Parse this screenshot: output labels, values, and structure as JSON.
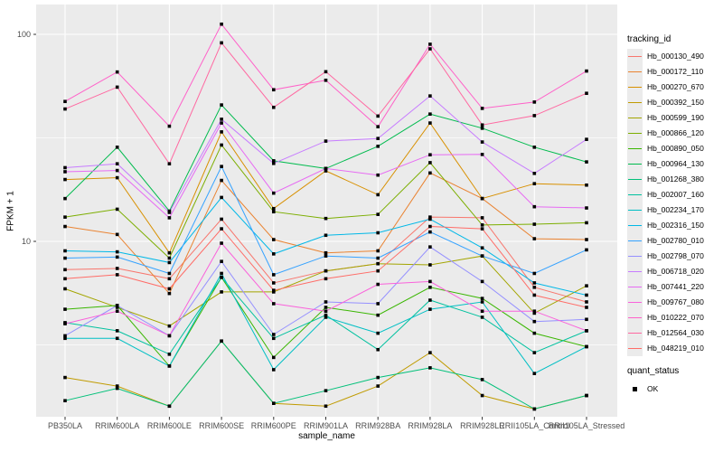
{
  "figure": {
    "panel_bg": "#ebebeb",
    "grid_color": "#ffffff",
    "tick_label_color": "#4d4d4d",
    "point_color": "#000000"
  },
  "axes": {
    "y_title": "FPKM + 1",
    "x_title": "sample_name"
  },
  "legend": {
    "tracking_title": "tracking_id",
    "quant_title": "quant_status",
    "quant_ok_label": "OK"
  },
  "chart_data": {
    "type": "line",
    "title": "",
    "xlabel": "sample_name",
    "ylabel": "FPKM + 1",
    "y_scale": "log10",
    "y_tick_values": [
      100,
      10
    ],
    "y_minor_values": [
      31.6,
      3.16
    ],
    "ylim": [
      1.3,
      140
    ],
    "grid": true,
    "legend_position": "right",
    "marker": "black-square",
    "quant_status_all": "OK",
    "x_categories": [
      "PB350LA",
      "RRIM600LA",
      "RRIM600LE",
      "RRIM600SE",
      "RRIM600PE",
      "RRIM901LA",
      "RRIM928BA",
      "RRIM928LA",
      "RRIM928LE",
      "RRII105LA_Control",
      "RRII105LA_Stressed"
    ],
    "series": [
      {
        "name": "Hb_000130_490",
        "color": "#F8766D",
        "values": [
          7.3,
          7.4,
          6.6,
          12.8,
          6.3,
          7.2,
          7.8,
          13.1,
          13.0,
          6.0,
          5.1
        ]
      },
      {
        "name": "Hb_000172_110",
        "color": "#EA8331",
        "values": [
          11.8,
          10.8,
          5.6,
          19.7,
          10.2,
          8.8,
          9.0,
          21.4,
          16.1,
          10.3,
          10.2
        ]
      },
      {
        "name": "Hb_000270_670",
        "color": "#D89000",
        "values": [
          19.9,
          20.3,
          8.8,
          33.8,
          14.4,
          21.9,
          16.8,
          37.3,
          16.1,
          19.0,
          18.7
        ]
      },
      {
        "name": "Hb_000392_150",
        "color": "#C09B00",
        "values": [
          2.2,
          2.0,
          1.6,
          3.3,
          1.65,
          1.6,
          2.0,
          2.9,
          1.8,
          1.55,
          1.8
        ]
      },
      {
        "name": "Hb_000599_190",
        "color": "#A3A500",
        "values": [
          5.9,
          4.8,
          3.9,
          5.7,
          5.7,
          7.2,
          7.8,
          7.7,
          8.5,
          4.5,
          6.1
        ]
      },
      {
        "name": "Hb_000866_120",
        "color": "#7CAE00",
        "values": [
          13.1,
          14.3,
          8.3,
          29.2,
          13.9,
          12.9,
          13.5,
          24.0,
          12.0,
          12.1,
          12.3
        ]
      },
      {
        "name": "Hb_000890_050",
        "color": "#39B600",
        "values": [
          4.7,
          4.9,
          2.5,
          6.7,
          2.75,
          4.8,
          4.4,
          6.0,
          5.3,
          3.6,
          3.1
        ]
      },
      {
        "name": "Hb_000964_130",
        "color": "#00BB4E",
        "values": [
          16.1,
          28.5,
          14.0,
          45.6,
          24.5,
          22.5,
          28.8,
          41.2,
          35.2,
          28.5,
          24.2
        ]
      },
      {
        "name": "Hb_001268_380",
        "color": "#00C079",
        "values": [
          1.7,
          1.95,
          1.6,
          3.3,
          1.65,
          1.9,
          2.2,
          2.45,
          2.15,
          1.55,
          1.8
        ]
      },
      {
        "name": "Hb_002007_160",
        "color": "#00C19F",
        "values": [
          4.05,
          3.7,
          2.85,
          6.7,
          3.4,
          4.4,
          3.0,
          5.2,
          4.3,
          2.9,
          3.7
        ]
      },
      {
        "name": "Hb_002234_170",
        "color": "#00BFC4",
        "values": [
          3.4,
          3.4,
          2.5,
          7.0,
          2.4,
          4.3,
          3.6,
          4.7,
          5.1,
          2.3,
          3.1
        ]
      },
      {
        "name": "Hb_002316_150",
        "color": "#00B8E7",
        "values": [
          9.0,
          8.9,
          7.9,
          16.3,
          8.7,
          10.7,
          11.0,
          12.8,
          9.3,
          6.3,
          5.5
        ]
      },
      {
        "name": "Hb_002780_010",
        "color": "#35A2FF",
        "values": [
          8.3,
          8.4,
          7.0,
          23.0,
          6.9,
          8.5,
          8.3,
          11.1,
          8.5,
          7.0,
          9.1
        ]
      },
      {
        "name": "Hb_002798_070",
        "color": "#9590FF",
        "values": [
          3.5,
          4.9,
          3.5,
          8.0,
          3.55,
          5.1,
          5.0,
          9.4,
          6.4,
          4.1,
          4.2
        ]
      },
      {
        "name": "Hb_006718_020",
        "color": "#C77CFF",
        "values": [
          22.7,
          23.7,
          13.8,
          38.9,
          23.8,
          30.5,
          31.4,
          50.4,
          30.2,
          21.3,
          31.1
        ]
      },
      {
        "name": "Hb_007441_220",
        "color": "#E76BF3",
        "values": [
          21.7,
          22.0,
          13.0,
          37.3,
          17.1,
          22.5,
          20.9,
          26.2,
          26.3,
          14.7,
          14.5
        ]
      },
      {
        "name": "Hb_009767_080",
        "color": "#FA62DB",
        "values": [
          4.0,
          4.6,
          3.5,
          9.8,
          5.0,
          4.6,
          6.2,
          6.4,
          4.6,
          4.6,
          3.7
        ]
      },
      {
        "name": "Hb_010222_070",
        "color": "#FF61C9",
        "values": [
          47.4,
          65.8,
          36.0,
          112.0,
          54.0,
          60.0,
          35.8,
          89.6,
          43.9,
          47.1,
          66.5
        ]
      },
      {
        "name": "Hb_012564_030",
        "color": "#FF68A1",
        "values": [
          43.6,
          55.6,
          23.7,
          91.0,
          44.4,
          66.0,
          40.3,
          85.1,
          36.5,
          40.5,
          51.9
        ]
      },
      {
        "name": "Hb_048219_010",
        "color": "#FF6C67",
        "values": [
          6.6,
          6.9,
          5.9,
          11.5,
          5.8,
          6.6,
          7.2,
          11.8,
          11.5,
          5.5,
          4.8
        ]
      }
    ]
  }
}
